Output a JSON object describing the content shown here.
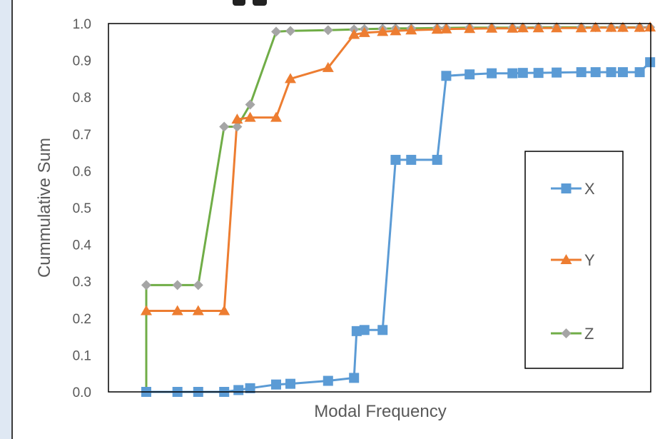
{
  "chart_data": {
    "type": "line",
    "title": "",
    "xlabel": "Modal Frequency",
    "ylabel": "Cummulative Sum",
    "ylim": [
      0,
      1
    ],
    "yticks": [
      "0.0",
      "0.1",
      "0.2",
      "0.3",
      "0.4",
      "0.5",
      "0.6",
      "0.7",
      "0.8",
      "0.9",
      "1.0"
    ],
    "x_axis_ticks_shown": false,
    "grid": false,
    "legend": "right-inside",
    "series": [
      {
        "name": "X",
        "color": "#5b9bd5",
        "marker": "square",
        "points": [
          [
            1,
            0.0
          ],
          [
            2.2,
            0.0
          ],
          [
            3,
            0.0
          ],
          [
            4,
            0.0
          ],
          [
            4.55,
            0.005
          ],
          [
            5,
            0.01
          ],
          [
            6,
            0.02
          ],
          [
            6.55,
            0.022
          ],
          [
            8,
            0.03
          ],
          [
            9,
            0.038
          ],
          [
            9.1,
            0.165
          ],
          [
            9.4,
            0.168
          ],
          [
            10.1,
            0.168
          ],
          [
            10.6,
            0.63
          ],
          [
            11.2,
            0.63
          ],
          [
            12.2,
            0.63
          ],
          [
            12.55,
            0.858
          ],
          [
            13.45,
            0.862
          ],
          [
            14.3,
            0.865
          ],
          [
            15.1,
            0.865
          ],
          [
            15.5,
            0.866
          ],
          [
            16.1,
            0.866
          ],
          [
            16.8,
            0.867
          ],
          [
            17.75,
            0.868
          ],
          [
            18.3,
            0.868
          ],
          [
            18.9,
            0.868
          ],
          [
            19.35,
            0.868
          ],
          [
            20,
            0.868
          ],
          [
            20.4,
            0.895
          ]
        ]
      },
      {
        "name": "Y",
        "color": "#ed7d31",
        "marker": "triangle",
        "points": [
          [
            1,
            0.22
          ],
          [
            2.2,
            0.22
          ],
          [
            3,
            0.22
          ],
          [
            4,
            0.22
          ],
          [
            4.5,
            0.74
          ],
          [
            5,
            0.745
          ],
          [
            6,
            0.745
          ],
          [
            6.55,
            0.85
          ],
          [
            8,
            0.88
          ],
          [
            9,
            0.97
          ],
          [
            9.4,
            0.975
          ],
          [
            10.1,
            0.978
          ],
          [
            10.6,
            0.98
          ],
          [
            11.2,
            0.982
          ],
          [
            12.2,
            0.984
          ],
          [
            12.55,
            0.985
          ],
          [
            13.45,
            0.986
          ],
          [
            14.3,
            0.987
          ],
          [
            15.1,
            0.987
          ],
          [
            15.5,
            0.988
          ],
          [
            16.1,
            0.988
          ],
          [
            16.8,
            0.988
          ],
          [
            17.75,
            0.988
          ],
          [
            18.3,
            0.989
          ],
          [
            18.9,
            0.989
          ],
          [
            19.35,
            0.989
          ],
          [
            20,
            0.989
          ],
          [
            20.4,
            0.99
          ]
        ]
      },
      {
        "name": "Z",
        "color": "#70ad47",
        "marker": "diamond",
        "marker_color": "#a5a5a5",
        "points": [
          [
            1,
            0.0
          ],
          [
            1,
            0.29
          ],
          [
            2.2,
            0.29
          ],
          [
            3,
            0.29
          ],
          [
            4,
            0.72
          ],
          [
            4.5,
            0.72
          ],
          [
            5,
            0.78
          ],
          [
            6,
            0.978
          ],
          [
            6.55,
            0.98
          ],
          [
            8,
            0.982
          ],
          [
            9,
            0.984
          ],
          [
            9.4,
            0.985
          ],
          [
            10.1,
            0.986
          ],
          [
            10.6,
            0.987
          ],
          [
            11.2,
            0.987
          ],
          [
            12.2,
            0.988
          ],
          [
            12.55,
            0.988
          ],
          [
            13.45,
            0.989
          ],
          [
            14.3,
            0.989
          ],
          [
            15.1,
            0.989
          ],
          [
            15.5,
            0.989
          ],
          [
            16.1,
            0.99
          ],
          [
            16.8,
            0.99
          ],
          [
            17.75,
            0.99
          ],
          [
            18.3,
            0.99
          ],
          [
            18.9,
            0.99
          ],
          [
            19.35,
            0.99
          ],
          [
            20,
            0.99
          ],
          [
            20.4,
            0.99
          ]
        ]
      }
    ]
  }
}
